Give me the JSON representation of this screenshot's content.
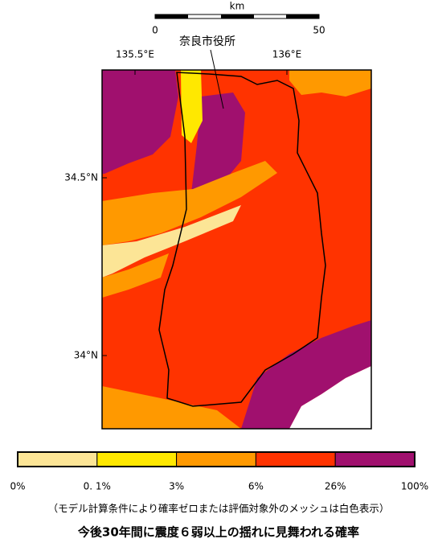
{
  "scale": {
    "unit": "km",
    "start": "0",
    "end": "50"
  },
  "city_label": "奈良市役所",
  "longitudes": [
    "135.5°E",
    "136°E"
  ],
  "latitudes": [
    "34.5°N",
    "34°N"
  ],
  "legend": {
    "colors": [
      "#fce596",
      "#ffe800",
      "#ff9900",
      "#ff3300",
      "#a0106e"
    ],
    "labels": [
      "0%",
      "0. 1%",
      "3%",
      "6%",
      "26%",
      "100%"
    ]
  },
  "note": "（モデル計算条件により確率ゼロまたは評価対象外のメッシュは白色表示）",
  "title": "今後30年間に震度６弱以上の揺れに見舞われる確率"
}
